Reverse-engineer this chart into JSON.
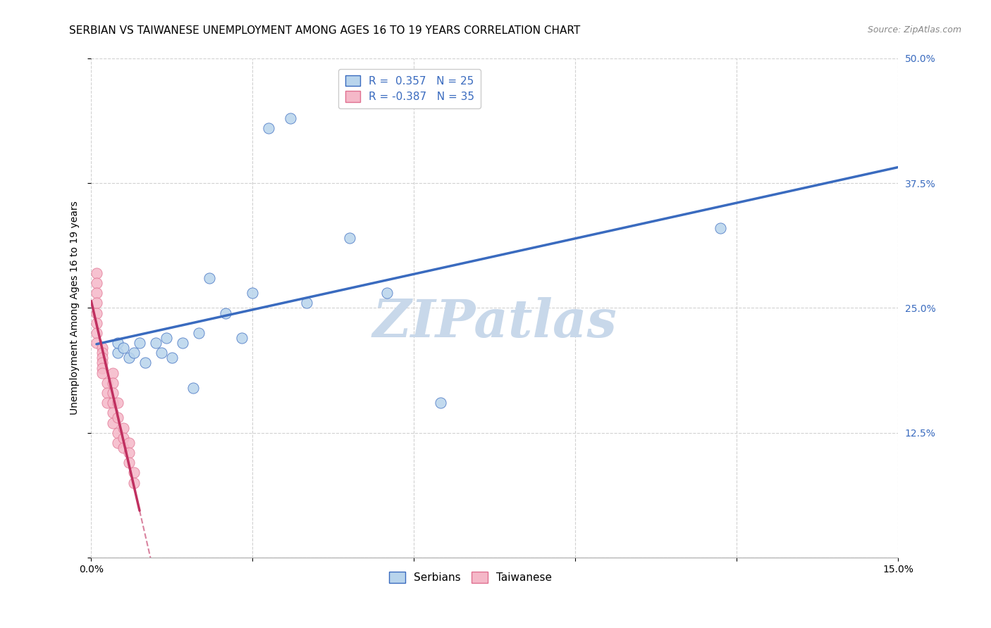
{
  "title": "SERBIAN VS TAIWANESE UNEMPLOYMENT AMONG AGES 16 TO 19 YEARS CORRELATION CHART",
  "source": "Source: ZipAtlas.com",
  "ylabel": "Unemployment Among Ages 16 to 19 years",
  "xlim": [
    0.0,
    0.15
  ],
  "ylim": [
    0.0,
    0.5
  ],
  "xticks": [
    0.0,
    0.03,
    0.06,
    0.09,
    0.12,
    0.15
  ],
  "yticks": [
    0.0,
    0.125,
    0.25,
    0.375,
    0.5
  ],
  "xticklabels": [
    "0.0%",
    "",
    "",
    "",
    "",
    "15.0%"
  ],
  "yticklabels_right": [
    "",
    "12.5%",
    "25.0%",
    "37.5%",
    "50.0%"
  ],
  "serbian_x": [
    0.005,
    0.005,
    0.006,
    0.007,
    0.008,
    0.009,
    0.01,
    0.012,
    0.013,
    0.014,
    0.015,
    0.017,
    0.019,
    0.02,
    0.022,
    0.025,
    0.028,
    0.03,
    0.033,
    0.037,
    0.04,
    0.048,
    0.055,
    0.065,
    0.117
  ],
  "serbian_y": [
    0.205,
    0.215,
    0.21,
    0.2,
    0.205,
    0.215,
    0.195,
    0.215,
    0.205,
    0.22,
    0.2,
    0.215,
    0.17,
    0.225,
    0.28,
    0.245,
    0.22,
    0.265,
    0.43,
    0.44,
    0.255,
    0.32,
    0.265,
    0.155,
    0.33
  ],
  "taiwanese_x": [
    0.001,
    0.001,
    0.001,
    0.001,
    0.001,
    0.001,
    0.001,
    0.001,
    0.002,
    0.002,
    0.002,
    0.002,
    0.002,
    0.002,
    0.003,
    0.003,
    0.003,
    0.004,
    0.004,
    0.004,
    0.004,
    0.004,
    0.004,
    0.005,
    0.005,
    0.005,
    0.005,
    0.006,
    0.006,
    0.006,
    0.007,
    0.007,
    0.007,
    0.008,
    0.008
  ],
  "taiwanese_y": [
    0.285,
    0.275,
    0.265,
    0.255,
    0.245,
    0.235,
    0.225,
    0.215,
    0.21,
    0.205,
    0.2,
    0.195,
    0.19,
    0.185,
    0.175,
    0.165,
    0.155,
    0.185,
    0.175,
    0.165,
    0.155,
    0.145,
    0.135,
    0.155,
    0.14,
    0.125,
    0.115,
    0.13,
    0.12,
    0.11,
    0.115,
    0.105,
    0.095,
    0.085,
    0.075
  ],
  "serbian_R": 0.357,
  "serbian_N": 25,
  "taiwanese_R": -0.387,
  "taiwanese_N": 35,
  "serbian_color": "#b8d4ec",
  "taiwanese_color": "#f5b8c8",
  "serbian_line_color": "#3a6bbf",
  "taiwanese_line_color": "#c03060",
  "watermark": "ZIPatlas",
  "watermark_color": "#c8d8ea",
  "title_fontsize": 11,
  "axis_label_fontsize": 10,
  "tick_fontsize": 10,
  "legend_fontsize": 11
}
